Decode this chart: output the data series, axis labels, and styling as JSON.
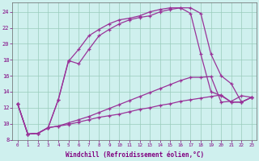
{
  "xlabel": "Windchill (Refroidissement éolien,°C)",
  "bg_color": "#cff0ee",
  "line_color": "#993399",
  "grid_color": "#99ccbb",
  "xlim": [
    -0.5,
    23.5
  ],
  "ylim": [
    8,
    25.2
  ],
  "yticks": [
    8,
    10,
    12,
    14,
    16,
    18,
    20,
    22,
    24
  ],
  "xticks": [
    0,
    1,
    2,
    3,
    4,
    5,
    6,
    7,
    8,
    9,
    10,
    11,
    12,
    13,
    14,
    15,
    16,
    17,
    18,
    19,
    20,
    21,
    22,
    23
  ],
  "series": [
    [
      12.5,
      8.7,
      8.8,
      9.5,
      9.7,
      9.9,
      10.2,
      10.5,
      10.8,
      11.0,
      11.2,
      11.5,
      11.8,
      12.0,
      12.3,
      12.5,
      12.8,
      13.0,
      13.2,
      13.4,
      13.6,
      12.7,
      12.7,
      13.3
    ],
    [
      12.5,
      8.7,
      8.8,
      9.5,
      9.7,
      10.1,
      10.5,
      10.9,
      11.4,
      11.9,
      12.4,
      12.9,
      13.4,
      13.9,
      14.4,
      14.9,
      15.4,
      15.8,
      15.8,
      15.9,
      12.7,
      12.8,
      13.5,
      13.3
    ],
    [
      12.5,
      8.7,
      8.8,
      9.5,
      13.0,
      17.8,
      19.3,
      21.0,
      21.8,
      22.5,
      23.0,
      23.2,
      23.5,
      24.0,
      24.3,
      24.5,
      24.5,
      23.8,
      18.7,
      14.0,
      13.5,
      12.7,
      12.7,
      13.3
    ],
    [
      12.5,
      8.7,
      8.8,
      9.5,
      13.0,
      17.9,
      17.5,
      19.3,
      21.0,
      21.8,
      22.5,
      23.0,
      23.3,
      23.5,
      24.0,
      24.3,
      24.5,
      24.5,
      23.8,
      18.7,
      16.0,
      15.0,
      12.7,
      13.3
    ]
  ]
}
